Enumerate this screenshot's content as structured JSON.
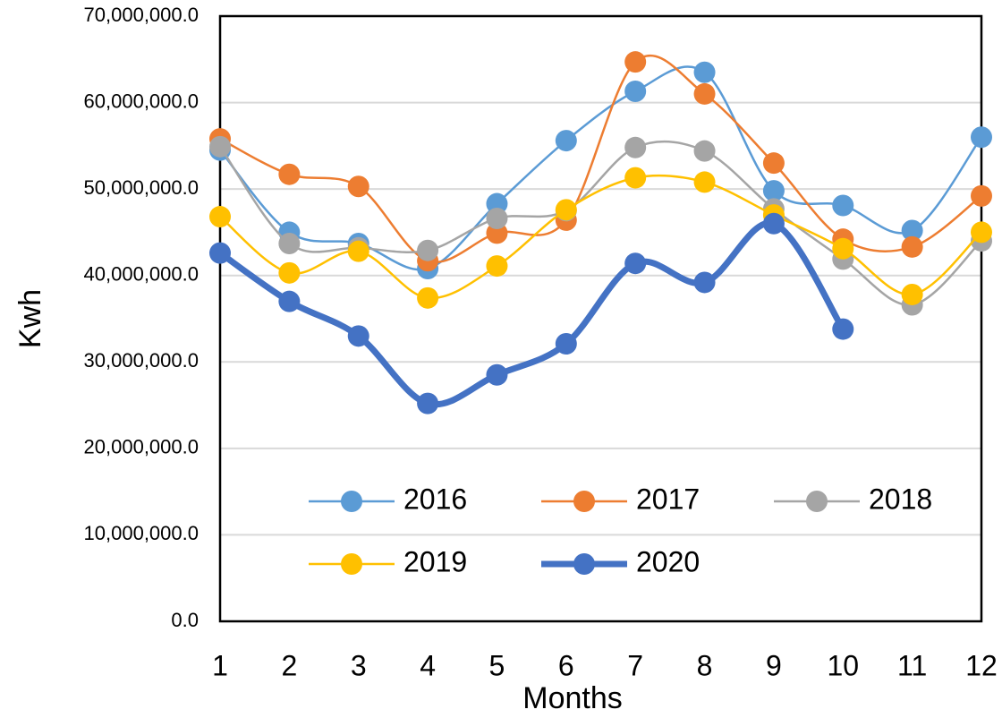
{
  "chart_data": {
    "type": "line",
    "x_label": "Months",
    "y_label": "Kwh",
    "xlim": [
      1,
      12
    ],
    "xticks": [
      1,
      2,
      3,
      4,
      5,
      6,
      7,
      8,
      9,
      10,
      11,
      12
    ],
    "ylim": [
      0,
      70000000
    ],
    "yticks": [
      {
        "value": 0,
        "label": "0.0"
      },
      {
        "value": 10000000,
        "label": "10,000,000.0"
      },
      {
        "value": 20000000,
        "label": "20,000,000.0"
      },
      {
        "value": 30000000,
        "label": "30,000,000.0"
      },
      {
        "value": 40000000,
        "label": "40,000,000.0"
      },
      {
        "value": 50000000,
        "label": "50,000,000.0"
      },
      {
        "value": 60000000,
        "label": "60,000,000.0"
      },
      {
        "value": 70000000,
        "label": "70,000,000.0"
      }
    ],
    "grid": true,
    "legend": "inside-bottom",
    "x": [
      1,
      2,
      3,
      4,
      5,
      6,
      7,
      8,
      9,
      10,
      11,
      12
    ],
    "series": [
      {
        "name": "2016",
        "color": "#5b9bd5",
        "values": [
          54500000,
          45000000,
          43700000,
          40800000,
          48300000,
          55600000,
          61300000,
          63500000,
          49800000,
          48100000,
          45200000,
          56000000
        ]
      },
      {
        "name": "2017",
        "color": "#ed7d31",
        "values": [
          55800000,
          51700000,
          50300000,
          41700000,
          44900000,
          46400000,
          64700000,
          61000000,
          53000000,
          44200000,
          43300000,
          49200000
        ]
      },
      {
        "name": "2018",
        "color": "#a5a5a5",
        "values": [
          54900000,
          43700000,
          43200000,
          42900000,
          46600000,
          47500000,
          54800000,
          54400000,
          47700000,
          41900000,
          36600000,
          44000000
        ]
      },
      {
        "name": "2019",
        "color": "#ffc000",
        "values": [
          46800000,
          40300000,
          42800000,
          37400000,
          41100000,
          47600000,
          51300000,
          50800000,
          47000000,
          43100000,
          37800000,
          45000000
        ]
      },
      {
        "name": "2020",
        "color": "#4472c4",
        "values": [
          42600000,
          37000000,
          33000000,
          25200000,
          28500000,
          32100000,
          41400000,
          39200000,
          46000000,
          33800000,
          null,
          null
        ]
      }
    ]
  }
}
